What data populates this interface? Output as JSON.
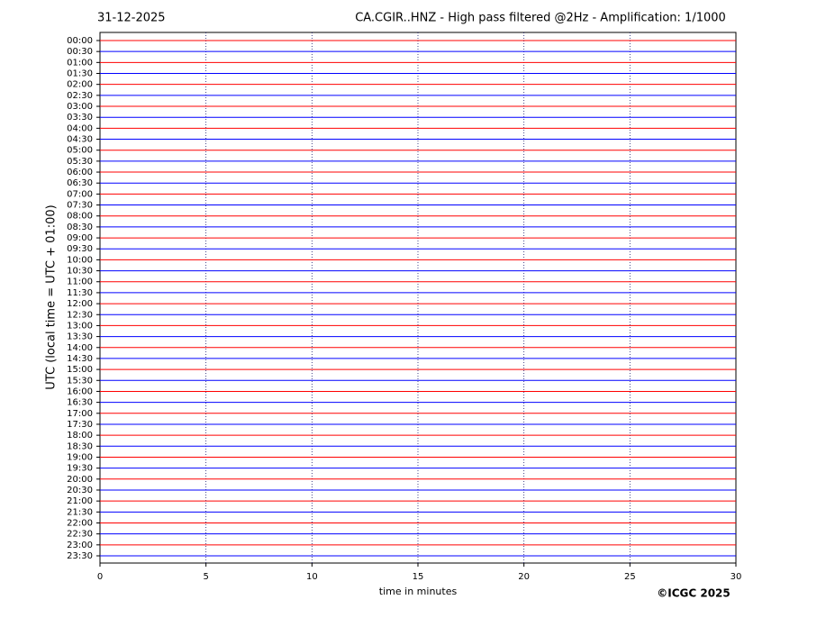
{
  "chart_data": {
    "type": "helicorder",
    "date": "31-12-2025",
    "title": "CA.CGIR..HNZ - High pass filtered @2Hz - Amplification: 1/1000",
    "ylabel": "UTC (local time = UTC + 01:00)",
    "xlabel": "time in minutes",
    "copyright": "©ICGC 2025",
    "categories": [
      "00:00",
      "00:30",
      "01:00",
      "01:30",
      "02:00",
      "02:30",
      "03:00",
      "03:30",
      "04:00",
      "04:30",
      "05:00",
      "05:30",
      "06:00",
      "06:30",
      "07:00",
      "07:30",
      "08:00",
      "08:30",
      "09:00",
      "09:30",
      "10:00",
      "10:30",
      "11:00",
      "11:30",
      "12:00",
      "12:30",
      "13:00",
      "13:30",
      "14:00",
      "14:30",
      "15:00",
      "15:30",
      "16:00",
      "16:30",
      "17:00",
      "17:30",
      "18:00",
      "18:30",
      "19:00",
      "19:30",
      "20:00",
      "20:30",
      "21:00",
      "21:30",
      "22:00",
      "22:30",
      "23:00",
      "23:30"
    ],
    "trace_colors": [
      "#ff0000",
      "#0000ff"
    ],
    "xlim": [
      0,
      30
    ],
    "xticks": [
      0,
      5,
      10,
      15,
      20,
      25,
      30
    ],
    "grid": true
  }
}
